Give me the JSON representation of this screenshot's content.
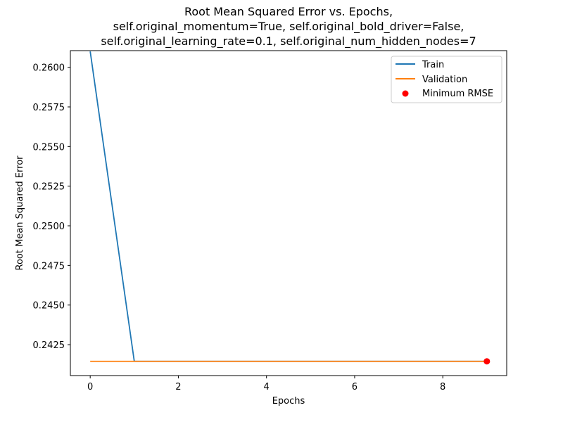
{
  "chart_data": {
    "type": "line",
    "title": [
      "Root Mean Squared Error vs. Epochs,",
      "self.original_momentum=True, self.original_bold_driver=False,",
      "self.original_learning_rate=0.1, self.original_num_hidden_nodes=7"
    ],
    "xlabel": "Epochs",
    "ylabel": "Root Mean Squared Error",
    "xlim": [
      -0.45,
      9.45
    ],
    "ylim": [
      0.24055,
      0.26105
    ],
    "xticks": [
      0,
      2,
      4,
      6,
      8
    ],
    "yticks": [
      0.2425,
      0.245,
      0.2475,
      0.25,
      0.2525,
      0.255,
      0.2575,
      0.26
    ],
    "ytick_labels": [
      "0.2425",
      "0.2450",
      "0.2475",
      "0.2500",
      "0.2525",
      "0.2550",
      "0.2575",
      "0.2600"
    ],
    "series": [
      {
        "name": "Train",
        "color": "#1f77b4",
        "x": [
          0,
          1,
          2,
          3,
          4,
          5,
          6,
          7,
          8,
          9
        ],
        "values": [
          0.261,
          0.24145,
          0.24145,
          0.24145,
          0.24145,
          0.24145,
          0.24145,
          0.24145,
          0.24145,
          0.24145
        ]
      },
      {
        "name": "Validation",
        "color": "#ff7f0e",
        "x": [
          0,
          1,
          2,
          3,
          4,
          5,
          6,
          7,
          8,
          9
        ],
        "values": [
          0.24145,
          0.24145,
          0.24145,
          0.24145,
          0.24145,
          0.24145,
          0.24145,
          0.24145,
          0.24145,
          0.24145
        ]
      }
    ],
    "markers": [
      {
        "name": "Minimum RMSE",
        "color": "#ff0000",
        "x": 9,
        "y": 0.24145
      }
    ],
    "legend": {
      "position": "top-right",
      "entries": [
        {
          "label": "Train",
          "kind": "line",
          "color": "#1f77b4"
        },
        {
          "label": "Validation",
          "kind": "line",
          "color": "#ff7f0e"
        },
        {
          "label": "Minimum RMSE",
          "kind": "point",
          "color": "#ff0000"
        }
      ]
    },
    "grid": false
  }
}
